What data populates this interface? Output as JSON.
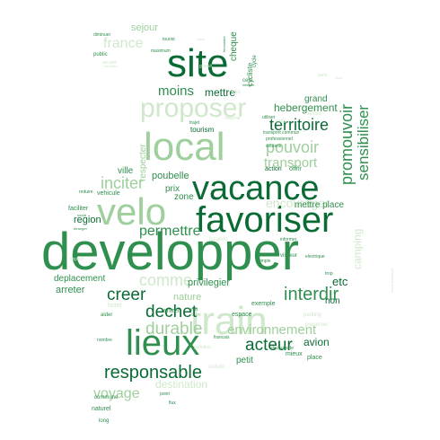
{
  "colors": {
    "dark": "#0b6b35",
    "mid": "#2f8f4e",
    "light": "#9fcf9c",
    "pale": "#cfe8cb"
  },
  "words": [
    {
      "text": "developper",
      "tone": "mid"
    },
    {
      "text": "favoriser",
      "tone": "dark"
    },
    {
      "text": "vacance",
      "tone": "dark"
    },
    {
      "text": "local",
      "tone": "light"
    },
    {
      "text": "velo",
      "tone": "light"
    },
    {
      "text": "train",
      "tone": "pale"
    },
    {
      "text": "site",
      "tone": "dark"
    },
    {
      "text": "lieux",
      "tone": "mid"
    },
    {
      "text": "proposer",
      "tone": "pale"
    },
    {
      "text": "responsable",
      "tone": "dark"
    },
    {
      "text": "interdir",
      "tone": "mid"
    },
    {
      "text": "creer",
      "tone": "dark"
    },
    {
      "text": "dechet",
      "tone": "dark"
    },
    {
      "text": "durable",
      "tone": "light"
    },
    {
      "text": "acteur",
      "tone": "dark"
    },
    {
      "text": "territoire",
      "tone": "dark"
    },
    {
      "text": "pouvoir",
      "tone": "light"
    },
    {
      "text": "promouvoir",
      "tone": "mid"
    },
    {
      "text": "sensibiliser",
      "tone": "mid"
    },
    {
      "text": "inciter",
      "tone": "light"
    },
    {
      "text": "permettre",
      "tone": "mid"
    },
    {
      "text": "comme",
      "tone": "pale"
    },
    {
      "text": "environnement",
      "tone": "light"
    },
    {
      "text": "voyage",
      "tone": "light"
    },
    {
      "text": "moins",
      "tone": "mid"
    },
    {
      "text": "transport",
      "tone": "light"
    },
    {
      "text": "encourager",
      "tone": "pale"
    },
    {
      "text": "hebergement",
      "tone": "mid"
    },
    {
      "text": "france",
      "tone": "pale"
    },
    {
      "text": "mettre",
      "tone": "dark"
    },
    {
      "text": "poubelle",
      "tone": "mid"
    },
    {
      "text": "camping",
      "tone": "pale"
    },
    {
      "text": "etc",
      "tone": "dark"
    },
    {
      "text": "privilegier",
      "tone": "mid"
    },
    {
      "text": "nature",
      "tone": "light"
    },
    {
      "text": "avion",
      "tone": "dark"
    },
    {
      "text": "destination",
      "tone": "pale"
    },
    {
      "text": "deplacement",
      "tone": "mid"
    },
    {
      "text": "arreter",
      "tone": "mid"
    },
    {
      "text": "region",
      "tone": "dark"
    },
    {
      "text": "ville",
      "tone": "mid"
    },
    {
      "text": "prix",
      "tone": "mid"
    },
    {
      "text": "zone",
      "tone": "mid"
    },
    {
      "text": "sejour",
      "tone": "light"
    },
    {
      "text": "cheque",
      "tone": "mid"
    },
    {
      "text": "grand",
      "tone": "mid"
    },
    {
      "text": "mettre place",
      "tone": "mid"
    },
    {
      "text": "non",
      "tone": "dark"
    },
    {
      "text": "petit",
      "tone": "mid"
    },
    {
      "text": "tourism",
      "tone": "dark"
    },
    {
      "text": "vehicule",
      "tone": "mid"
    },
    {
      "text": "faciliter",
      "tone": "mid"
    },
    {
      "text": "entrer",
      "tone": "mid"
    },
    {
      "text": "espace",
      "tone": "mid"
    },
    {
      "text": "exemple",
      "tone": "mid"
    },
    {
      "text": "action",
      "tone": "dark"
    },
    {
      "text": "offrir",
      "tone": "mid"
    },
    {
      "text": "place",
      "tone": "mid"
    },
    {
      "text": "mieux",
      "tone": "mid"
    },
    {
      "text": "parking",
      "tone": "pale"
    },
    {
      "text": "naturel",
      "tone": "mid"
    },
    {
      "text": "commune",
      "tone": "mid"
    },
    {
      "text": "long",
      "tone": "mid"
    },
    {
      "text": "hotel",
      "tone": "pale"
    },
    {
      "text": "aider",
      "tone": "mid"
    },
    {
      "text": "public",
      "tone": "mid"
    },
    {
      "text": "diminuer",
      "tone": "mid"
    },
    {
      "text": "maximum",
      "tone": "mid"
    },
    {
      "text": "accueil",
      "tone": "pale"
    },
    {
      "text": "cycliste",
      "tone": "mid"
    },
    {
      "text": "cycle",
      "tone": "mid"
    },
    {
      "text": "utiliser",
      "tone": "mid"
    },
    {
      "text": "reduire",
      "tone": "mid"
    },
    {
      "text": "vert",
      "tone": "mid"
    },
    {
      "text": "simple",
      "tone": "mid"
    },
    {
      "text": "pollution",
      "tone": "pale"
    },
    {
      "text": "voiture",
      "tone": "pale"
    },
    {
      "text": "point",
      "tone": "mid"
    },
    {
      "text": "flux",
      "tone": "mid"
    },
    {
      "text": "nombre",
      "tone": "mid"
    },
    {
      "text": "impact",
      "tone": "pale"
    },
    {
      "text": "decouverte",
      "tone": "mid"
    },
    {
      "text": "informer",
      "tone": "mid"
    },
    {
      "text": "trop",
      "tone": "mid"
    },
    {
      "text": "electrique",
      "tone": "mid"
    },
    {
      "text": "professionnel",
      "tone": "mid"
    },
    {
      "text": "soutenir",
      "tone": "mid"
    },
    {
      "text": "transport commun",
      "tone": "mid"
    },
    {
      "text": "national",
      "tone": "pale"
    },
    {
      "text": "enfin",
      "tone": "pale"
    },
    {
      "text": "service",
      "tone": "pale"
    },
    {
      "text": "preserver",
      "tone": "pale"
    },
    {
      "text": "tourist",
      "tone": "mid"
    },
    {
      "text": "ferroviaire",
      "tone": "mid"
    },
    {
      "text": "integrer",
      "tone": "mid"
    },
    {
      "text": "respecter",
      "tone": "light"
    },
    {
      "text": "trajet",
      "tone": "mid"
    },
    {
      "text": "mode transport",
      "tone": "pale"
    },
    {
      "text": "social",
      "tone": "mid"
    },
    {
      "text": "etranger",
      "tone": "mid"
    },
    {
      "text": "remettre",
      "tone": "pale"
    },
    {
      "text": "gratuit",
      "tone": "pale"
    },
    {
      "text": "client",
      "tone": "pale"
    },
    {
      "text": "eco",
      "tone": "pale"
    },
    {
      "text": "celu",
      "tone": "mid"
    },
    {
      "text": "location",
      "tone": "pale"
    },
    {
      "text": "visiteur",
      "tone": "mid"
    },
    {
      "text": "sans",
      "tone": "pale"
    },
    {
      "text": "touri",
      "tone": "pale"
    },
    {
      "text": "francais",
      "tone": "mid"
    }
  ]
}
